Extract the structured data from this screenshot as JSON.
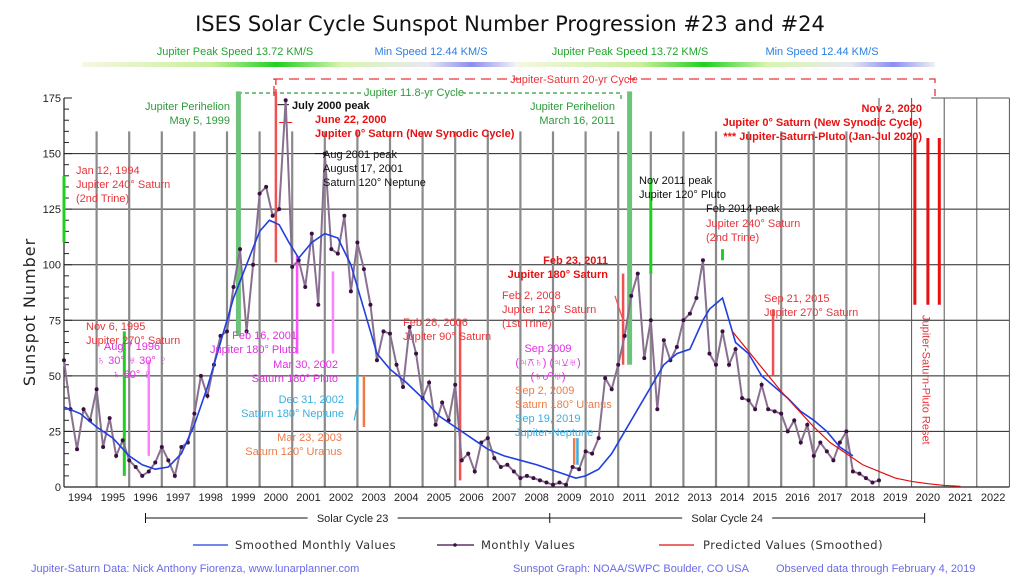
{
  "chart_data": {
    "type": "line",
    "title": "ISES Solar Cycle Sunspot Number Progression  #23 and #24",
    "xlabel": "",
    "ylabel": "Sunspot Number",
    "xlim": [
      1994,
      2023
    ],
    "ylim": [
      0,
      175
    ],
    "y_ticks": [
      0,
      25,
      50,
      75,
      100,
      125,
      150,
      175
    ],
    "x_tick_labels": [
      "1994",
      "1995",
      "1996",
      "1997",
      "1998",
      "1999",
      "2000",
      "2001",
      "2002",
      "2003",
      "2004",
      "2005",
      "2006",
      "2007",
      "2008",
      "2009",
      "2010",
      "2011",
      "2012",
      "2013",
      "2014",
      "2015",
      "2016",
      "2017",
      "2018",
      "2019",
      "2020",
      "2021",
      "2022"
    ],
    "grid": true,
    "legend": {
      "placement": "bottom",
      "entries": [
        {
          "label": "Smoothed Monthly Values",
          "color": "#1f3fe0"
        },
        {
          "label": "Monthly Values",
          "color": "#3a1040"
        },
        {
          "label": "Predicted Values (Smoothed)",
          "color": "#e01010"
        }
      ]
    },
    "series": [
      {
        "name": "Smoothed Monthly Values",
        "color": "#1f3fe0",
        "x": [
          1994.0,
          1994.5,
          1995.0,
          1995.5,
          1996.0,
          1996.4,
          1996.8,
          1997.2,
          1997.6,
          1998.0,
          1998.4,
          1998.8,
          1999.2,
          1999.6,
          2000.0,
          2000.3,
          2000.6,
          2000.9,
          2001.2,
          2001.6,
          2002.0,
          2002.4,
          2002.8,
          2003.2,
          2003.6,
          2004.0,
          2004.5,
          2005.0,
          2005.5,
          2006.0,
          2006.5,
          2007.0,
          2007.5,
          2008.0,
          2008.5,
          2008.9,
          2009.3,
          2009.7,
          2010.0,
          2010.4,
          2010.8,
          2011.2,
          2011.6,
          2012.0,
          2012.4,
          2012.8,
          2013.2,
          2013.6,
          2013.8,
          2014.2,
          2014.6,
          2015.0,
          2015.4,
          2015.8,
          2016.2,
          2016.6,
          2017.0,
          2017.4,
          2017.8,
          2018.2
        ],
        "y": [
          36,
          33,
          27,
          22,
          14,
          10,
          8,
          9,
          15,
          28,
          45,
          65,
          85,
          100,
          115,
          120,
          118,
          110,
          103,
          110,
          114,
          112,
          100,
          80,
          60,
          53,
          47,
          40,
          32,
          27,
          22,
          17,
          14,
          12,
          10,
          8,
          6,
          4,
          5,
          8,
          15,
          25,
          35,
          45,
          55,
          60,
          62,
          75,
          80,
          85,
          65,
          60,
          50,
          45,
          40,
          34,
          30,
          25,
          18,
          14
        ]
      },
      {
        "name": "Monthly Values",
        "color": "#3a1040",
        "x": [
          1994.0,
          1994.2,
          1994.4,
          1994.6,
          1994.8,
          1995.0,
          1995.2,
          1995.4,
          1995.6,
          1995.8,
          1996.0,
          1996.2,
          1996.4,
          1996.6,
          1996.8,
          1997.0,
          1997.2,
          1997.4,
          1997.6,
          1997.8,
          1998.0,
          1998.2,
          1998.4,
          1998.6,
          1998.8,
          1999.0,
          1999.2,
          1999.4,
          1999.6,
          1999.8,
          2000.0,
          2000.2,
          2000.4,
          2000.6,
          2000.8,
          2001.0,
          2001.2,
          2001.4,
          2001.6,
          2001.8,
          2002.0,
          2002.2,
          2002.4,
          2002.6,
          2002.8,
          2003.0,
          2003.2,
          2003.4,
          2003.6,
          2003.8,
          2004.0,
          2004.2,
          2004.4,
          2004.6,
          2004.8,
          2005.0,
          2005.2,
          2005.4,
          2005.6,
          2005.8,
          2006.0,
          2006.2,
          2006.4,
          2006.6,
          2006.8,
          2007.0,
          2007.2,
          2007.4,
          2007.6,
          2007.8,
          2008.0,
          2008.2,
          2008.4,
          2008.6,
          2008.8,
          2009.0,
          2009.2,
          2009.4,
          2009.6,
          2009.8,
          2010.0,
          2010.2,
          2010.4,
          2010.6,
          2010.8,
          2011.0,
          2011.2,
          2011.4,
          2011.6,
          2011.8,
          2012.0,
          2012.2,
          2012.4,
          2012.6,
          2012.8,
          2013.0,
          2013.2,
          2013.4,
          2013.6,
          2013.8,
          2014.0,
          2014.2,
          2014.4,
          2014.6,
          2014.8,
          2015.0,
          2015.2,
          2015.4,
          2015.6,
          2015.8,
          2016.0,
          2016.2,
          2016.4,
          2016.6,
          2016.8,
          2017.0,
          2017.2,
          2017.4,
          2017.6,
          2017.8,
          2018.0,
          2018.2,
          2018.4,
          2018.6,
          2018.8,
          2019.0
        ],
        "y": [
          57,
          35,
          17,
          35,
          30,
          44,
          18,
          31,
          14,
          21,
          12,
          9,
          5,
          7,
          11,
          18,
          12,
          5,
          18,
          20,
          33,
          50,
          41,
          55,
          68,
          70,
          90,
          107,
          70,
          100,
          132,
          135,
          122,
          125,
          174,
          99,
          102,
          90,
          114,
          82,
          150,
          107,
          105,
          122,
          88,
          110,
          98,
          82,
          57,
          70,
          69,
          55,
          45,
          72,
          60,
          40,
          47,
          28,
          38,
          30,
          46,
          12,
          15,
          7,
          20,
          22,
          13,
          9,
          10,
          7,
          4,
          5,
          4,
          3,
          2,
          1,
          2,
          1,
          9,
          8,
          16,
          15,
          22,
          49,
          44,
          55,
          68,
          86,
          96,
          58,
          75,
          35,
          66,
          57,
          63,
          75,
          78,
          85,
          102,
          60,
          55,
          70,
          55,
          62,
          40,
          39,
          35,
          46,
          35,
          34,
          33,
          25,
          30,
          20,
          28,
          14,
          20,
          16,
          12,
          20,
          25,
          7,
          6,
          4,
          2,
          3
        ]
      },
      {
        "name": "Predicted Values (Smoothed)",
        "color": "#e01010",
        "x": [
          2014.5,
          2015.0,
          2015.5,
          2016.0,
          2016.5,
          2017.0,
          2017.5,
          2018.0,
          2018.5,
          2019.0,
          2019.5,
          2020.0,
          2020.5,
          2021.0,
          2021.5
        ],
        "y": [
          70,
          61,
          52,
          43,
          35,
          27,
          20,
          15,
          10,
          7,
          4,
          2.5,
          1.5,
          0.7,
          0.3
        ]
      }
    ],
    "top_bands": [
      {
        "label": "Jupiter Peak Speed 13.72 KM/S",
        "color": "#22a52e"
      },
      {
        "label": "Min Speed 12.44 KM/S",
        "color": "#2b7fe0"
      },
      {
        "label": "Jupiter Peak Speed 13.72 KM/S",
        "color": "#22a52e"
      },
      {
        "label": "Min Speed 12.44 KM/S",
        "color": "#2b7fe0"
      }
    ],
    "cycle_brackets": [
      {
        "label": "Jupiter 11.8-yr Cycle",
        "color": "#2e9a3a"
      },
      {
        "label": "Jupiter-Saturn 20-yr Cycle",
        "color": "#e8343a"
      }
    ],
    "solar_cycles": [
      {
        "label": "Solar Cycle 23",
        "start": 1996.5,
        "end": 2008.9
      },
      {
        "label": "Solar Cycle 24",
        "start": 2008.9,
        "end": 2020.4
      }
    ],
    "annotations": [
      {
        "id": "jan1994",
        "lines": [
          "Jan 12, 1994",
          "Jupiter 240° Saturn",
          "(2nd Trine)"
        ],
        "color": "#e8343a",
        "bold": false
      },
      {
        "id": "nov1995",
        "lines": [
          "Nov 6, 1995",
          "Jupiter 270° Saturn"
        ],
        "color": "#e8343a",
        "bold": false
      },
      {
        "id": "aug1996",
        "lines": [
          "Aug 7 1996",
          "♄ 30° ♅ 30° ♇",
          "♄ 60° ♇"
        ],
        "color": "#e030e0",
        "bold": false
      },
      {
        "id": "perihelion1999",
        "lines": [
          "Jupiter Perihelion",
          "May 5, 1999"
        ],
        "color": "#2e9a3a",
        "bold": false
      },
      {
        "id": "july2000",
        "lines": [
          "July 2000 peak"
        ],
        "color": "#111111",
        "bold": true
      },
      {
        "id": "june2000",
        "lines": [
          "June 22, 2000",
          "Jupiter 0° Saturn (New Synodic Cycle)"
        ],
        "color": "#e81010",
        "bold": true
      },
      {
        "id": "aug2001",
        "lines": [
          "Aug 2001 peak",
          "August 17, 2001",
          "Saturn 120° Neptune"
        ],
        "color": "#111111",
        "bold": false
      },
      {
        "id": "feb2001",
        "lines": [
          "Feb 16, 2001",
          "Jupiter 180° Pluto"
        ],
        "color": "#e030e0",
        "bold": false
      },
      {
        "id": "mar2002",
        "lines": [
          "Mar 30, 2002",
          "Saturn 180° Pluto"
        ],
        "color": "#e030e0",
        "bold": false
      },
      {
        "id": "dec2002",
        "lines": [
          "Dec 31, 2002",
          "Saturn 180° Neptune"
        ],
        "color": "#3aaee0",
        "bold": false
      },
      {
        "id": "mar2003",
        "lines": [
          "Mar 23, 2003",
          "Saturn 120° Uranus"
        ],
        "color": "#ee7a45",
        "bold": false
      },
      {
        "id": "feb2006",
        "lines": [
          "Feb 28, 2006",
          "Jupiter 90° Saturn"
        ],
        "color": "#e8343a",
        "bold": false
      },
      {
        "id": "feb2008",
        "lines": [
          "Feb 2, 2008",
          "Jupiter 120° Saturn",
          "(1st Trine)"
        ],
        "color": "#e8343a",
        "bold": false
      },
      {
        "id": "sep2009",
        "lines": [
          "Sep 2009",
          "(♃⚻♄) (♃⚺♅)",
          "(♄☍♅)"
        ],
        "color": "#e030e0",
        "bold": false
      },
      {
        "id": "sep2009b",
        "lines": [
          "Sep 2, 2009",
          "Saturn 180° Uranus"
        ],
        "color": "#ee7a45",
        "bold": false
      },
      {
        "id": "sep2019",
        "lines": [
          "Sep 19, 2019",
          "Jupiter-Neptune"
        ],
        "color": "#3aaee0",
        "bold": false
      },
      {
        "id": "feb2011",
        "lines": [
          "Feb 23, 2011",
          "Jupiter 180° Saturn"
        ],
        "color": "#e81010",
        "bold": true
      },
      {
        "id": "perihelion2011",
        "lines": [
          "Jupiter Perihelion",
          "March 16, 2011"
        ],
        "color": "#2e9a3a",
        "bold": false
      },
      {
        "id": "nov2011",
        "lines": [
          "Nov 2011 peak",
          "Jupiter 120° Pluto"
        ],
        "color": "#111111",
        "bold": false
      },
      {
        "id": "feb2014a",
        "lines": [
          "Feb 2014 peak"
        ],
        "color": "#111111",
        "bold": false
      },
      {
        "id": "feb2014b",
        "lines": [
          "Jupiter 240° Saturn",
          "(2nd Trine)"
        ],
        "color": "#e8343a",
        "bold": false
      },
      {
        "id": "sep2015",
        "lines": [
          "Sep 21, 2015",
          "Jupiter 270° Saturn"
        ],
        "color": "#e8343a",
        "bold": false
      },
      {
        "id": "nov2020",
        "lines": [
          "Nov 2, 2020",
          "Jupiter 0° Saturn (New Synodic Cycle)",
          "*** Jupiter-Saturn-Pluto (Jan-Jul 2020)"
        ],
        "color": "#e81010",
        "bold": true
      },
      {
        "id": "reset",
        "lines": [
          "Jupiter-Saturn-Pluto Reset"
        ],
        "color": "#e8343a",
        "bold": false
      }
    ]
  },
  "footer": {
    "left": "Jupiter-Saturn Data: Nick Anthony Fiorenza, www.lunarplanner.com",
    "middle": "Sunspot Graph: NOAA/SWPC Boulder, CO USA",
    "right": "Observed data through February 4, 2019"
  }
}
